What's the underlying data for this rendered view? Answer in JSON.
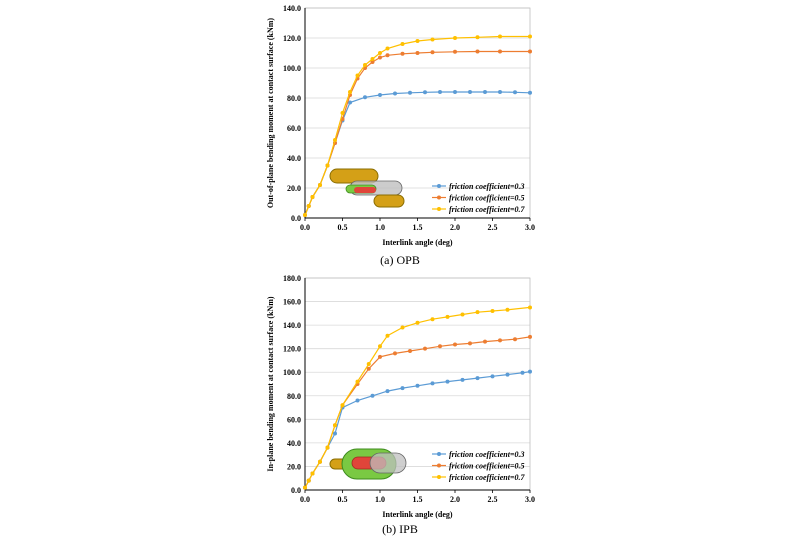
{
  "colors": {
    "series": [
      "#5b9bd5",
      "#ed7d31",
      "#ffc000"
    ],
    "grid": "#d9d9d9",
    "axis": "#000000"
  },
  "chart_data": [
    {
      "type": "line",
      "caption": "(a)  OPB",
      "xlabel": "Interlink angle (deg)",
      "ylabel": "Out-of-plane bending moment at contact surface (kNm)",
      "xlim": [
        0,
        3.0
      ],
      "ylim": [
        0,
        140
      ],
      "xticks": [
        "0.0",
        "0.5",
        "1.0",
        "1.5",
        "2.0",
        "2.5",
        "3.0"
      ],
      "yticks": [
        "0.0",
        "20.0",
        "40.0",
        "60.0",
        "80.0",
        "100.0",
        "120.0",
        "140.0"
      ],
      "grid": "horizontal",
      "legend_position": "bottom-right",
      "inset_image": "chain-link-opb",
      "series": [
        {
          "name": "friction coefficient=0.3",
          "x": [
            0,
            0.05,
            0.1,
            0.2,
            0.3,
            0.4,
            0.5,
            0.6,
            0.8,
            1.0,
            1.2,
            1.4,
            1.6,
            1.8,
            2.0,
            2.2,
            2.4,
            2.6,
            2.8,
            3.0
          ],
          "y": [
            2,
            8,
            14,
            22,
            35,
            50,
            65,
            77,
            80.5,
            82,
            83,
            83.5,
            83.8,
            84,
            84,
            84,
            84,
            84,
            83.8,
            83.5
          ]
        },
        {
          "name": "friction coefficient=0.5",
          "x": [
            0,
            0.05,
            0.1,
            0.2,
            0.3,
            0.4,
            0.5,
            0.6,
            0.7,
            0.8,
            0.9,
            1.0,
            1.1,
            1.3,
            1.5,
            1.7,
            2.0,
            2.3,
            2.6,
            3.0
          ],
          "y": [
            2,
            8,
            14,
            22,
            35,
            50,
            66,
            82,
            93,
            100,
            104,
            107,
            108.5,
            109.5,
            110,
            110.5,
            110.8,
            111,
            111,
            111
          ]
        },
        {
          "name": "friction coefficient=0.7",
          "x": [
            0,
            0.05,
            0.1,
            0.2,
            0.3,
            0.4,
            0.5,
            0.6,
            0.7,
            0.8,
            0.9,
            1.0,
            1.1,
            1.3,
            1.5,
            1.7,
            2.0,
            2.3,
            2.6,
            3.0
          ],
          "y": [
            2,
            8,
            14,
            22,
            35,
            52,
            70,
            84,
            95,
            102,
            106,
            110,
            113,
            116,
            118,
            119,
            120,
            120.5,
            121,
            121
          ]
        }
      ]
    },
    {
      "type": "line",
      "caption": "(b)  IPB",
      "xlabel": "Interlink angle (deg)",
      "ylabel": "In-plane bending moment at contact surface (kNm)",
      "xlim": [
        0,
        3.0
      ],
      "ylim": [
        0,
        180
      ],
      "xticks": [
        "0.0",
        "0.5",
        "1.0",
        "1.5",
        "2.0",
        "2.5",
        "3.0"
      ],
      "yticks": [
        "0.0",
        "20.0",
        "40.0",
        "60.0",
        "80.0",
        "100.0",
        "120.0",
        "140.0",
        "160.0",
        "180.0"
      ],
      "grid": "horizontal",
      "legend_position": "bottom-right",
      "inset_image": "chain-link-ipb",
      "series": [
        {
          "name": "friction coefficient=0.3",
          "x": [
            0,
            0.05,
            0.1,
            0.2,
            0.3,
            0.4,
            0.5,
            0.7,
            0.9,
            1.1,
            1.3,
            1.5,
            1.7,
            1.9,
            2.1,
            2.3,
            2.5,
            2.7,
            2.9,
            3.0
          ],
          "y": [
            2,
            8,
            14,
            24,
            36,
            48,
            70,
            76,
            80,
            84,
            86.5,
            88.5,
            90.5,
            92,
            93.5,
            95,
            96.5,
            98,
            99.5,
            100.5
          ]
        },
        {
          "name": "friction coefficient=0.5",
          "x": [
            0,
            0.05,
            0.1,
            0.2,
            0.3,
            0.4,
            0.5,
            0.7,
            0.85,
            1.0,
            1.2,
            1.4,
            1.6,
            1.8,
            2.0,
            2.2,
            2.4,
            2.6,
            2.8,
            3.0
          ],
          "y": [
            2,
            8,
            14,
            24,
            36,
            55,
            72,
            90,
            103,
            113,
            116,
            118,
            120,
            122,
            123.5,
            124.5,
            126,
            127,
            128,
            130
          ]
        },
        {
          "name": "friction coefficient=0.7",
          "x": [
            0,
            0.05,
            0.1,
            0.2,
            0.3,
            0.4,
            0.5,
            0.7,
            0.85,
            1.0,
            1.1,
            1.3,
            1.5,
            1.7,
            1.9,
            2.1,
            2.3,
            2.5,
            2.7,
            3.0
          ],
          "y": [
            2,
            8,
            14,
            24,
            36,
            55,
            72,
            92,
            107,
            122,
            131,
            138,
            142,
            145,
            147,
            149,
            151,
            152,
            153,
            155
          ]
        }
      ]
    }
  ]
}
